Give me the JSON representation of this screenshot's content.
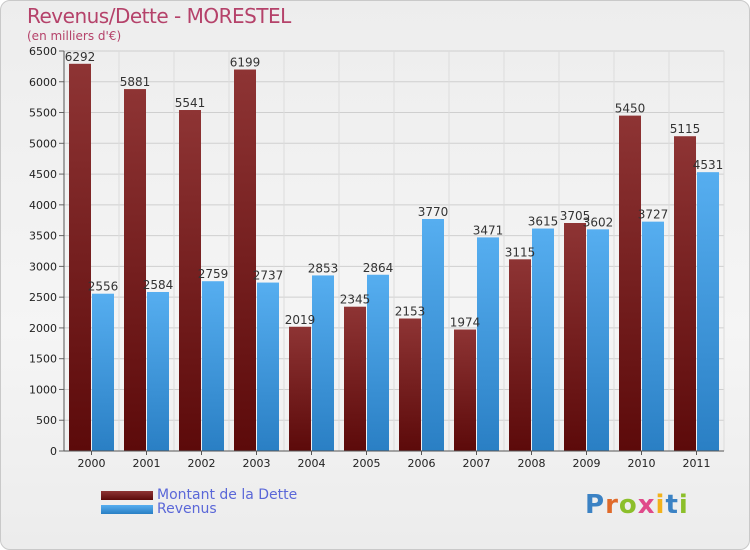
{
  "chart_data": {
    "type": "bar",
    "title": "Revenus/Dette - MORESTEL",
    "subtitle": "(en milliers d'€)",
    "categories": [
      "2000",
      "2001",
      "2002",
      "2003",
      "2004",
      "2005",
      "2006",
      "2007",
      "2008",
      "2009",
      "2010",
      "2011"
    ],
    "series": [
      {
        "name": "Montant de la Dette",
        "color": "#8b2e2e",
        "values": [
          6292,
          5881,
          5541,
          6199,
          2019,
          2345,
          2153,
          1974,
          3115,
          3705,
          5450,
          5115
        ]
      },
      {
        "name": "Revenus",
        "color": "#4aa3e6",
        "values": [
          2556,
          2584,
          2759,
          2737,
          2853,
          2864,
          3770,
          3471,
          3615,
          3602,
          3727,
          4531
        ]
      }
    ],
    "ylim": [
      0,
      6500
    ],
    "yticks": [
      0,
      500,
      1000,
      1500,
      2000,
      2500,
      3000,
      3500,
      4000,
      4500,
      5000,
      5500,
      6000,
      6500
    ],
    "xlabel": "",
    "ylabel": "",
    "grid": true,
    "legend_position": "bottom-left"
  },
  "logo": {
    "text": "Proxiti"
  }
}
